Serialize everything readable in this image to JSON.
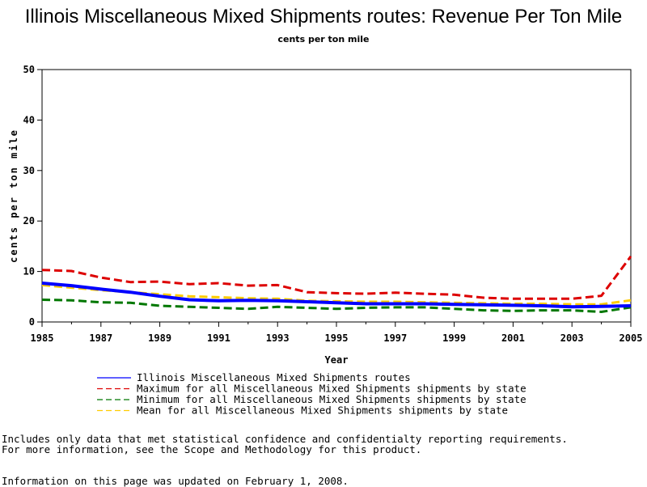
{
  "chart_data": {
    "type": "line",
    "title": "Illinois Miscellaneous Mixed Shipments routes: Revenue Per Ton Mile",
    "subtitle": "cents per ton mile",
    "xlabel": "Year",
    "ylabel": "cents per ton mile",
    "xlim": [
      1985,
      2005
    ],
    "ylim": [
      0,
      50
    ],
    "x_ticks": [
      "1985",
      "1987",
      "1989",
      "1991",
      "1993",
      "1995",
      "1997",
      "1999",
      "2001",
      "2003",
      "2005"
    ],
    "y_ticks": [
      "0",
      "10",
      "20",
      "30",
      "40",
      "50"
    ],
    "grid": false,
    "legend_position": "bottom",
    "x": [
      1985,
      1986,
      1987,
      1988,
      1989,
      1990,
      1991,
      1992,
      1993,
      1994,
      1995,
      1996,
      1997,
      1998,
      1999,
      2000,
      2001,
      2002,
      2003,
      2004,
      2005
    ],
    "series": [
      {
        "name": "Illinois Miscellaneous Mixed Shipments routes",
        "color": "#0000ff",
        "style": "solid",
        "values": [
          7.7,
          7.2,
          6.5,
          5.9,
          5.1,
          4.4,
          4.2,
          4.3,
          4.2,
          4.0,
          3.8,
          3.6,
          3.6,
          3.6,
          3.5,
          3.4,
          3.3,
          3.2,
          3.0,
          3.1,
          3.2
        ]
      },
      {
        "name": "Maximum for all Miscellaneous Mixed Shipments shipments by state",
        "color": "#dd0000",
        "style": "dashed",
        "values": [
          10.3,
          10.1,
          8.8,
          7.9,
          8.0,
          7.5,
          7.7,
          7.2,
          7.3,
          5.9,
          5.7,
          5.6,
          5.8,
          5.6,
          5.4,
          4.8,
          4.6,
          4.6,
          4.6,
          5.2,
          13.0
        ]
      },
      {
        "name": "Minimum for all Miscellaneous Mixed Shipments shipments by state",
        "color": "#007700",
        "style": "dashed",
        "values": [
          4.4,
          4.3,
          3.9,
          3.8,
          3.2,
          3.0,
          2.8,
          2.6,
          3.0,
          2.8,
          2.6,
          2.8,
          2.9,
          2.9,
          2.6,
          2.3,
          2.2,
          2.3,
          2.3,
          2.0,
          2.9
        ]
      },
      {
        "name": "Mean for all Miscellaneous Mixed Shipments shipments by state",
        "color": "#ffcc00",
        "style": "dashed",
        "values": [
          7.3,
          6.8,
          6.3,
          5.9,
          5.5,
          5.1,
          4.9,
          4.7,
          4.6,
          4.2,
          4.1,
          4.0,
          4.0,
          3.9,
          3.8,
          3.7,
          3.6,
          3.6,
          3.5,
          3.5,
          4.3
        ]
      }
    ]
  },
  "notes": {
    "line1": "Includes only data that met statistical confidence and confidentialty reporting requirements.",
    "line2": "For more information, see the Scope and Methodology for this product.",
    "updated": "Information on this page was updated on February 1, 2008."
  }
}
